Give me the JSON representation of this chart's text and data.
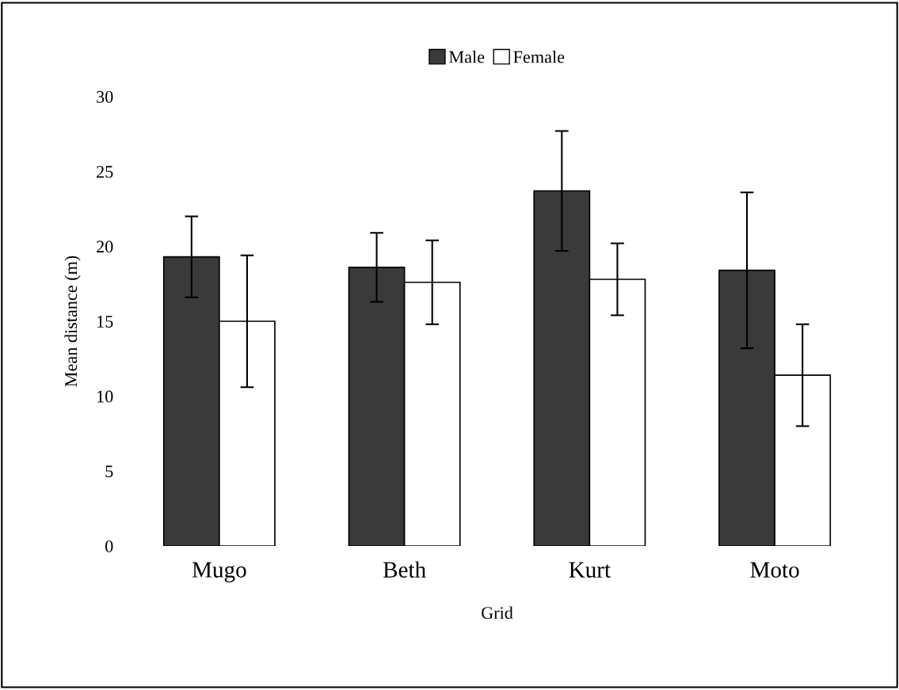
{
  "chart_data": {
    "type": "bar",
    "xlabel": "Grid",
    "ylabel": "Mean distance (m)",
    "categories": [
      "Mugo",
      "Beth",
      "Kurt",
      "Moto"
    ],
    "series": [
      {
        "name": "Male",
        "color": "#3a3a3a",
        "values": [
          19.3,
          18.6,
          23.7,
          18.4
        ],
        "errors": [
          2.7,
          2.3,
          4.0,
          5.2
        ]
      },
      {
        "name": "Female",
        "color": "#ffffff",
        "values": [
          15.0,
          17.6,
          17.8,
          11.4
        ],
        "errors": [
          4.4,
          2.8,
          2.4,
          3.4
        ]
      }
    ],
    "ylim": [
      0,
      30
    ],
    "yticks": [
      0,
      5,
      10,
      15,
      20,
      25,
      30
    ],
    "grid": false,
    "legend": "top"
  }
}
